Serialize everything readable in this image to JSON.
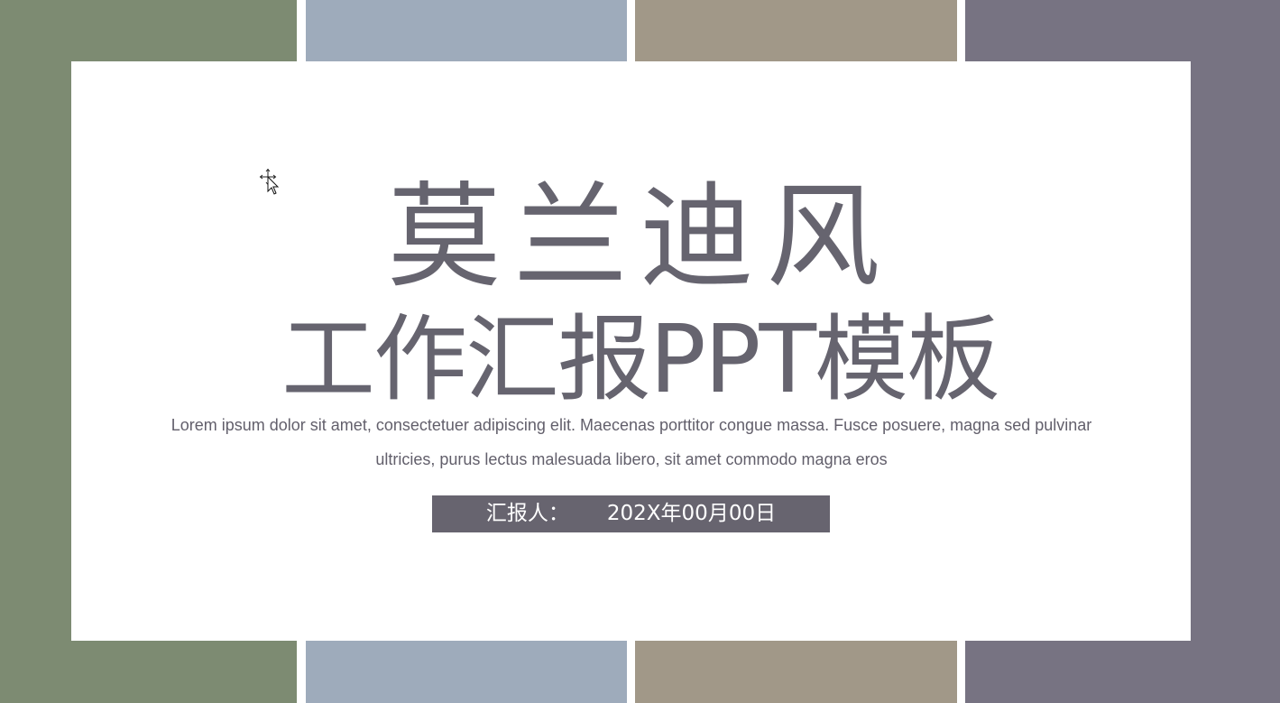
{
  "colors": {
    "panel_green": "#7d8b72",
    "panel_blue": "#9eabbb",
    "panel_taupe": "#a19888",
    "panel_purple": "#777382",
    "text_primary": "#66646f",
    "bar": "#67646f",
    "background": "#ffffff"
  },
  "slide": {
    "title_line_1": "莫兰迪风",
    "title_line_2": "工作汇报PPT模板",
    "description": "Lorem ipsum dolor sit amet, consectetuer adipiscing elit. Maecenas porttitor congue massa. Fusce posuere, magna sed pulvinar ultricies, purus lectus malesuada libero, sit amet commodo magna eros",
    "reporter_label": "汇报人：",
    "date": "202X年00月00日"
  },
  "cursor": {
    "icon": "move-cursor-icon"
  }
}
